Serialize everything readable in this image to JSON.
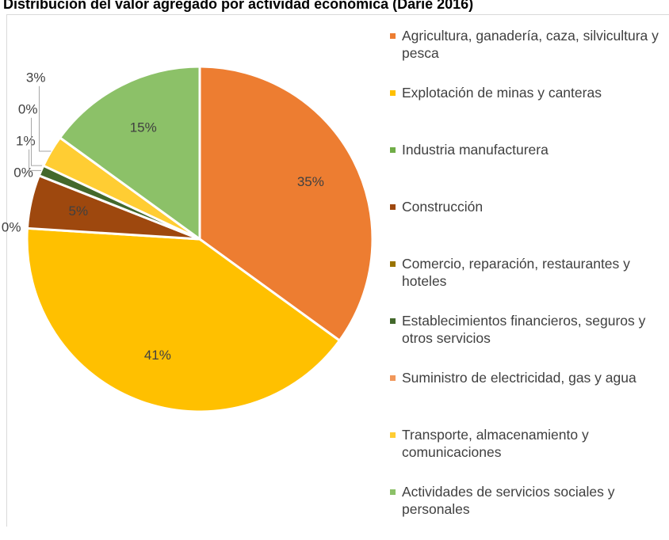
{
  "chart_data": {
    "type": "pie",
    "title": "Distribución del valor agregado por actividad económica (Darié 2016)",
    "categories": [
      "Agricultura, ganadería, caza, silvicultura y pesca",
      "Explotación de minas y canteras",
      "Industria manufacturera",
      "Construcción",
      "Comercio, reparación, restaurantes y hoteles",
      "Establecimientos financieros, seguros y otros servicios",
      "Suministro de electricidad, gas y agua",
      "Transporte, almacenamiento y comunicaciones",
      "Actividades de servicios sociales y personales"
    ],
    "values": [
      35,
      41,
      0,
      5,
      0,
      1,
      0,
      3,
      15
    ],
    "value_labels": [
      "35%",
      "41%",
      "0%",
      "5%",
      "0%",
      "1%",
      "0%",
      "3%",
      "15%"
    ],
    "colors": [
      "#ed7d31",
      "#ffc000",
      "#70ad47",
      "#9e480e",
      "#997300",
      "#43682b",
      "#f1975a",
      "#ffcd33",
      "#8cc168"
    ],
    "legend": "right"
  }
}
